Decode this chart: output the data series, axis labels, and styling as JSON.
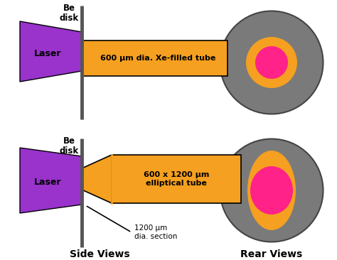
{
  "bg_color": "#ffffff",
  "purple_color": "#9933cc",
  "orange_color": "#f5a020",
  "gray_color": "#7a7a7a",
  "pink_color": "#ff2288",
  "black_color": "#000000",
  "bar_color": "#555555",
  "title_side": "Side Views",
  "title_rear": "Rear Views",
  "label_laser": "Laser",
  "label_be": "Be\ndisk",
  "tube1_text": "600 μm dia. Xe-filled tube",
  "tube2_text": "600 x 1200 μm\nelliptical tube",
  "annot_text": "1200 μm\ndia. section",
  "fig_w": 4.74,
  "fig_h": 3.66,
  "dpi": 100
}
